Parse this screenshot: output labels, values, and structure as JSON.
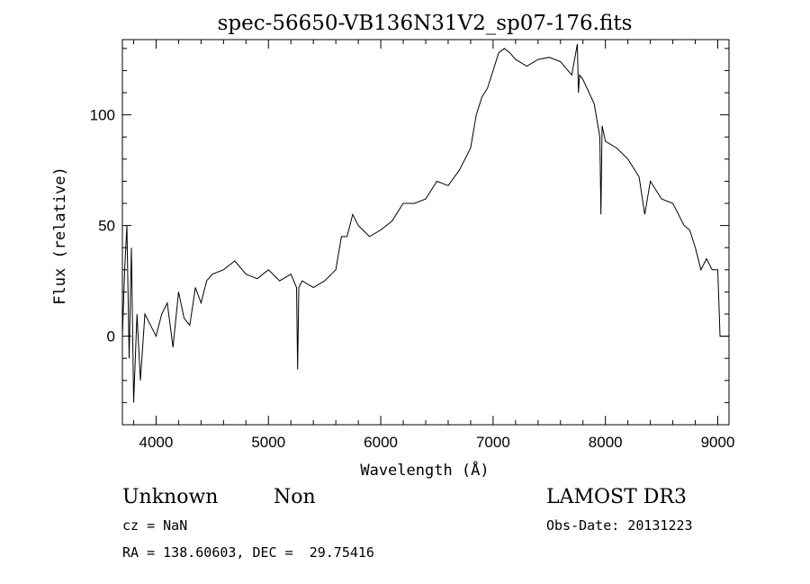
{
  "chart_data": {
    "type": "line",
    "title": "spec-56650-VB136N31V2_sp07-176.fits",
    "xlabel": "Wavelength (Å)",
    "ylabel": "Flux (relative)",
    "xlim": [
      3700,
      9100
    ],
    "ylim": [
      -40,
      134
    ],
    "xticks": [
      4000,
      5000,
      6000,
      7000,
      8000,
      9000
    ],
    "yticks": [
      0,
      50,
      100
    ],
    "xtick_labels": [
      "4000",
      "5000",
      "6000",
      "7000",
      "8000",
      "9000"
    ],
    "ytick_labels": [
      "0",
      "50",
      "100"
    ],
    "x": [
      3700,
      3720,
      3740,
      3760,
      3780,
      3800,
      3830,
      3860,
      3900,
      3950,
      4000,
      4050,
      4100,
      4150,
      4200,
      4250,
      4300,
      4350,
      4400,
      4450,
      4500,
      4600,
      4700,
      4800,
      4900,
      5000,
      5100,
      5200,
      5250,
      5260,
      5270,
      5300,
      5400,
      5500,
      5600,
      5650,
      5700,
      5750,
      5800,
      5900,
      6000,
      6100,
      6200,
      6300,
      6400,
      6500,
      6600,
      6700,
      6800,
      6850,
      6900,
      6950,
      7000,
      7050,
      7100,
      7150,
      7200,
      7300,
      7400,
      7500,
      7600,
      7700,
      7750,
      7760,
      7770,
      7800,
      7900,
      7950,
      7960,
      7970,
      8000,
      8100,
      8200,
      8300,
      8350,
      8400,
      8500,
      8600,
      8700,
      8750,
      8800,
      8850,
      8900,
      8950,
      9000,
      9010,
      9020,
      9100
    ],
    "values": [
      0,
      30,
      50,
      -10,
      40,
      -30,
      10,
      -20,
      10,
      5,
      0,
      10,
      15,
      -5,
      20,
      8,
      5,
      22,
      15,
      25,
      28,
      30,
      34,
      28,
      26,
      30,
      25,
      28,
      22,
      -15,
      22,
      25,
      22,
      25,
      30,
      45,
      45,
      55,
      50,
      45,
      48,
      52,
      60,
      60,
      62,
      70,
      68,
      75,
      85,
      100,
      108,
      112,
      120,
      128,
      130,
      128,
      125,
      122,
      125,
      126,
      124,
      118,
      132,
      110,
      118,
      116,
      105,
      90,
      55,
      95,
      88,
      85,
      80,
      72,
      55,
      70,
      62,
      60,
      50,
      48,
      40,
      30,
      35,
      30,
      30,
      15,
      0,
      0
    ],
    "annotations": {
      "class": "Unknown",
      "subclass": "Non",
      "survey": "LAMOST DR3",
      "cz": "cz = NaN",
      "obs_date": "Obs-Date: 20131223",
      "coords": "RA = 138.60603, DEC =  29.75416"
    },
    "grid": false
  }
}
